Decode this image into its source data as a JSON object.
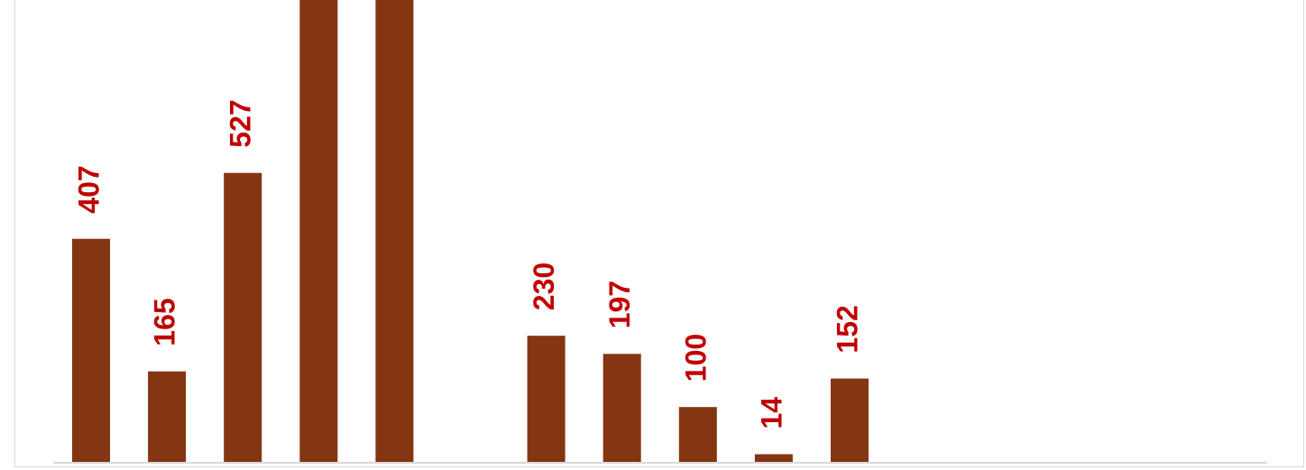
{
  "chart_data": {
    "type": "bar",
    "categories": [
      "",
      "",
      "",
      "",
      "",
      "",
      "",
      "",
      "",
      "",
      "",
      "",
      "",
      "",
      "",
      "",
      ""
    ],
    "values": [
      407,
      165,
      527,
      880,
      880,
      null,
      230,
      197,
      100,
      14,
      152,
      null,
      null,
      null,
      null,
      null,
      null
    ],
    "labels": [
      "407",
      "165",
      "527",
      "",
      "",
      "",
      "230",
      "197",
      "100",
      "14",
      "152",
      "",
      "",
      "",
      "",
      "",
      ""
    ],
    "ylim": [
      0,
      860
    ],
    "grid": false,
    "bar_color": "#843511",
    "label_color": "#c00000",
    "axis_color": "#d9d9d9"
  }
}
